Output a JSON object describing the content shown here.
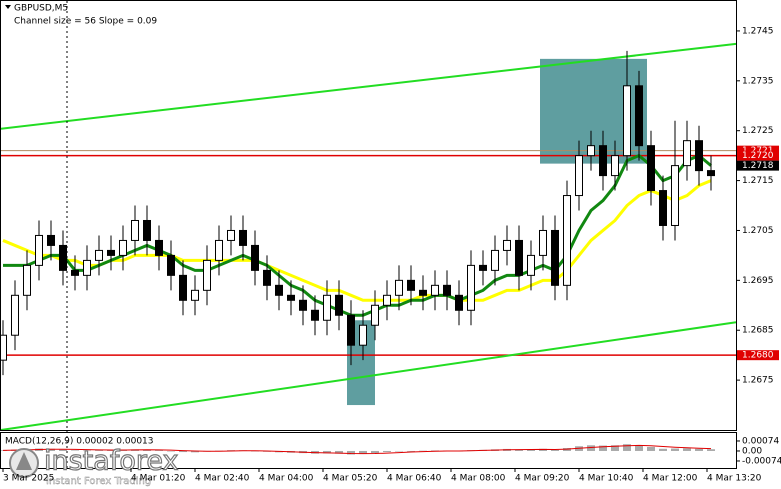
{
  "chart_data": {
    "type": "candlestick",
    "title": "GBPUSD,M5",
    "subtitle": "Channel size = 56 Slope = 0.09",
    "ylim": [
      1.2665,
      1.2751
    ],
    "yticks": [
      1.2745,
      1.2735,
      1.2725,
      1.2715,
      1.2705,
      1.2695,
      1.2685,
      1.2675
    ],
    "xticks": [
      "3 Mar 2025",
      "4 Mar 01:20",
      "4 Mar 02:40",
      "4 Mar 04:00",
      "4 Mar 05:20",
      "4 Mar 06:40",
      "4 Mar 08:00",
      "4 Mar 09:20",
      "4 Mar 10:40",
      "4 Mar 12:00",
      "4 Mar 13:20"
    ],
    "open": [
      1.2679,
      1.2684,
      1.2692,
      1.2698,
      1.2704,
      1.2702,
      1.2697,
      1.2696,
      1.2699,
      1.2701,
      1.27,
      1.2703,
      1.2707,
      1.2703,
      1.27,
      1.2696,
      1.2691,
      1.2693,
      1.2699,
      1.2703,
      1.2705,
      1.2702,
      1.2697,
      1.2694,
      1.2692,
      1.2691,
      1.2689,
      1.2687,
      1.2692,
      1.2688,
      1.2682,
      1.2686,
      1.269,
      1.2692,
      1.2695,
      1.2693,
      1.2692,
      1.2694,
      1.2692,
      1.2689,
      1.2698,
      1.2697,
      1.2701,
      1.2703,
      1.2696,
      1.27,
      1.2705,
      1.2694,
      1.2712,
      1.272,
      1.2722,
      1.2716,
      1.272,
      1.2734,
      1.2722,
      1.2713,
      1.2706,
      1.2718,
      1.2723,
      1.2717
    ],
    "high": [
      1.2687,
      1.2695,
      1.2701,
      1.2707,
      1.2707,
      1.2705,
      1.27,
      1.2702,
      1.2704,
      1.2704,
      1.2706,
      1.271,
      1.271,
      1.2706,
      1.2703,
      1.2699,
      1.2696,
      1.2702,
      1.2706,
      1.2708,
      1.2708,
      1.2705,
      1.27,
      1.2697,
      1.2695,
      1.2694,
      1.2692,
      1.2695,
      1.2695,
      1.2691,
      1.2689,
      1.2693,
      1.2695,
      1.2698,
      1.2698,
      1.2696,
      1.2697,
      1.2697,
      1.2695,
      1.2701,
      1.2701,
      1.2704,
      1.2706,
      1.2706,
      1.2703,
      1.2708,
      1.2708,
      1.2715,
      1.2723,
      1.2725,
      1.2725,
      1.2723,
      1.2741,
      1.2737,
      1.2725,
      1.2716,
      1.2727,
      1.2727,
      1.2726,
      1.272
    ],
    "low": [
      1.2676,
      1.2681,
      1.2689,
      1.2695,
      1.2699,
      1.2694,
      1.2693,
      1.2693,
      1.2696,
      1.2697,
      1.2697,
      1.27,
      1.27,
      1.2697,
      1.2693,
      1.2688,
      1.2688,
      1.269,
      1.2696,
      1.27,
      1.2699,
      1.2694,
      1.2691,
      1.2689,
      1.2688,
      1.2686,
      1.2684,
      1.2684,
      1.2685,
      1.2678,
      1.2679,
      1.2683,
      1.2687,
      1.2689,
      1.269,
      1.2689,
      1.2689,
      1.2689,
      1.2686,
      1.2686,
      1.2694,
      1.2694,
      1.2698,
      1.2693,
      1.2693,
      1.2697,
      1.2691,
      1.2691,
      1.2709,
      1.2717,
      1.2713,
      1.2713,
      1.2717,
      1.2719,
      1.271,
      1.2703,
      1.2703,
      1.2715,
      1.2714,
      1.2713
    ],
    "close": [
      1.2684,
      1.2692,
      1.2698,
      1.2704,
      1.2702,
      1.2697,
      1.2696,
      1.2699,
      1.2701,
      1.27,
      1.2703,
      1.2707,
      1.2703,
      1.27,
      1.2696,
      1.2691,
      1.2693,
      1.2699,
      1.2703,
      1.2705,
      1.2702,
      1.2697,
      1.2694,
      1.2692,
      1.2691,
      1.2689,
      1.2687,
      1.2692,
      1.2688,
      1.2682,
      1.2686,
      1.269,
      1.2692,
      1.2695,
      1.2693,
      1.2692,
      1.2694,
      1.2692,
      1.2689,
      1.2698,
      1.2697,
      1.2701,
      1.2703,
      1.2696,
      1.27,
      1.2705,
      1.2694,
      1.2712,
      1.272,
      1.2722,
      1.2716,
      1.272,
      1.2734,
      1.2722,
      1.2713,
      1.2706,
      1.2718,
      1.2723,
      1.2717,
      1.2716
    ],
    "series": [
      {
        "color": "#ffff00",
        "values": [
          1.2703,
          1.2702,
          1.2701,
          1.27,
          1.27,
          1.2699,
          1.2699,
          1.2698,
          1.2698,
          1.2699,
          1.2699,
          1.27,
          1.27,
          1.27,
          1.27,
          1.2699,
          1.2699,
          1.2699,
          1.2699,
          1.2699,
          1.2699,
          1.2699,
          1.2698,
          1.2697,
          1.2696,
          1.2695,
          1.2694,
          1.2693,
          1.2693,
          1.2692,
          1.2691,
          1.2691,
          1.2691,
          1.2691,
          1.2691,
          1.2692,
          1.2692,
          1.2692,
          1.2691,
          1.2691,
          1.2691,
          1.2692,
          1.2693,
          1.2693,
          1.2694,
          1.2695,
          1.2695,
          1.2697,
          1.27,
          1.2703,
          1.2705,
          1.2707,
          1.271,
          1.2712,
          1.2713,
          1.2712,
          1.2711,
          1.2712,
          1.2714,
          1.2715
        ]
      },
      {
        "color": "#118811",
        "values": [
          1.2698,
          1.2698,
          1.2698,
          1.2699,
          1.27,
          1.27,
          1.2697,
          1.2697,
          1.2698,
          1.2699,
          1.27,
          1.2701,
          1.2702,
          1.2701,
          1.27,
          1.2698,
          1.2697,
          1.2697,
          1.2698,
          1.2699,
          1.27,
          1.2699,
          1.2698,
          1.2696,
          1.2694,
          1.2693,
          1.2691,
          1.269,
          1.2689,
          1.2688,
          1.2688,
          1.2689,
          1.269,
          1.269,
          1.2691,
          1.2691,
          1.2692,
          1.2692,
          1.2691,
          1.2692,
          1.2693,
          1.2695,
          1.2696,
          1.2696,
          1.2697,
          1.2698,
          1.2697,
          1.27,
          1.2705,
          1.2709,
          1.2711,
          1.2714,
          1.2719,
          1.272,
          1.2718,
          1.2715,
          1.2716,
          1.2719,
          1.272,
          1.2718
        ]
      }
    ],
    "channel": {
      "color": "#22dd22",
      "upper": [
        1.27254,
        1.27424
      ],
      "lower": [
        1.2665,
        1.26866
      ]
    },
    "hlines": [
      {
        "value": 1.2721,
        "color": "#b08a60"
      },
      {
        "value": 1.272,
        "color": "#e00000"
      },
      {
        "value": 1.268,
        "color": "#e00000"
      }
    ],
    "price_tags": [
      {
        "value": 1.2721,
        "color": "#e00000"
      },
      {
        "value": 1.272,
        "label": "1.2720",
        "color": "#e00000"
      },
      {
        "value": 1.2718,
        "color": "#000000"
      },
      {
        "value": 1.268,
        "label": "1.2680",
        "color": "#e00000"
      }
    ],
    "boxes": [
      {
        "top": 1.27394,
        "bottom": 1.27184,
        "color": "#5f9ea0"
      },
      {
        "top": 1.2687,
        "bottom": 1.267,
        "color": "#5f9ea0"
      }
    ],
    "macd": {
      "label": "MACD(12,26,9) 0.00002 0.00013",
      "ylim": [
        -0.00126,
        0.00133
      ],
      "yticks": [
        0.00074,
        {
          "value": 0,
          "label": "0.00"
        },
        -0.00074
      ],
      "histogram_color": "#a9a9a9",
      "signal_color": "#e00000",
      "histogram": [
        5e-05,
        0.0001,
        0.00015,
        0.00018,
        0.00016,
        0.0001,
        4e-05,
        3e-05,
        5e-05,
        6e-05,
        8e-05,
        0.00012,
        0.0001,
        5e-05,
        0.0,
        -8e-05,
        -0.0001,
        -5e-05,
        2e-05,
        6e-05,
        5e-05,
        0.0,
        -6e-05,
        -0.0001,
        -0.00013,
        -0.00016,
        -0.0002,
        -0.00018,
        -0.0002,
        -0.00026,
        -0.00022,
        -0.00015,
        -8e-05,
        -2e-05,
        0.0,
        2e-05,
        4e-05,
        3e-05,
        0.0,
        6e-05,
        8e-05,
        0.00012,
        0.00015,
        0.0001,
        0.00012,
        0.00016,
        8e-05,
        0.00022,
        0.00035,
        0.00042,
        0.0004,
        0.00042,
        0.0005,
        0.00044,
        0.0003,
        0.00016,
        0.00018,
        0.0002,
        0.00016,
        0.00013
      ],
      "signal": [
        4e-05,
        6e-05,
        8e-05,
        0.00011,
        0.00013,
        0.00013,
        0.00012,
        0.0001,
        8e-05,
        7e-05,
        7e-05,
        8e-05,
        9e-05,
        8e-05,
        6e-05,
        3e-05,
        0.0,
        -2e-05,
        -2e-05,
        0.0,
        2e-05,
        2e-05,
        0.0,
        -3e-05,
        -6e-05,
        -9e-05,
        -0.00012,
        -0.00014,
        -0.00016,
        -0.00019,
        -0.0002,
        -0.00019,
        -0.00016,
        -0.00012,
        -8e-05,
        -5e-05,
        -2e-05,
        0.0,
        0.0,
        2e-05,
        4e-05,
        6e-05,
        9e-05,
        0.0001,
        0.00011,
        0.00012,
        0.00011,
        0.00014,
        0.0002,
        0.00026,
        0.00031,
        0.00035,
        0.00039,
        0.00041,
        0.00039,
        0.00033,
        0.00028,
        0.00024,
        0.0002,
        0.00017
      ]
    },
    "logo": {
      "name": "instaforex",
      "tagline": "Instant Forex Trading"
    }
  }
}
